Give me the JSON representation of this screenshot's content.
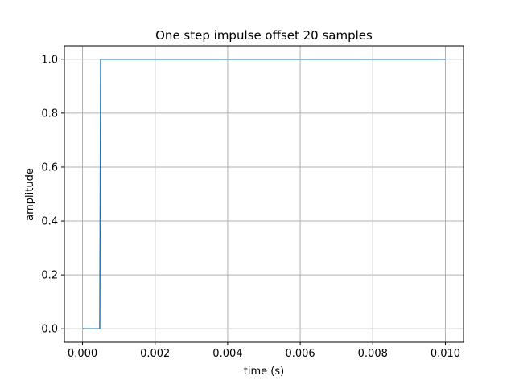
{
  "chart_data": {
    "type": "line",
    "title": "One step impulse offset 20 samples",
    "xlabel": "time (s)",
    "ylabel": "amplitude",
    "xlim": [
      -0.0005,
      0.0105
    ],
    "ylim": [
      -0.05,
      1.05
    ],
    "x_ticks": [
      0.0,
      0.002,
      0.004,
      0.006,
      0.008,
      0.01
    ],
    "x_tick_labels": [
      "0.000",
      "0.002",
      "0.004",
      "0.006",
      "0.008",
      "0.010"
    ],
    "y_ticks": [
      0.0,
      0.2,
      0.4,
      0.6,
      0.8,
      1.0
    ],
    "y_tick_labels": [
      "0.0",
      "0.2",
      "0.4",
      "0.6",
      "0.8",
      "1.0"
    ],
    "grid": true,
    "series": [
      {
        "color": "#1f77b4",
        "x": [
          0.0,
          0.000475,
          0.0005,
          0.01
        ],
        "y": [
          0.0,
          0.0,
          1.0,
          1.0
        ]
      }
    ]
  }
}
